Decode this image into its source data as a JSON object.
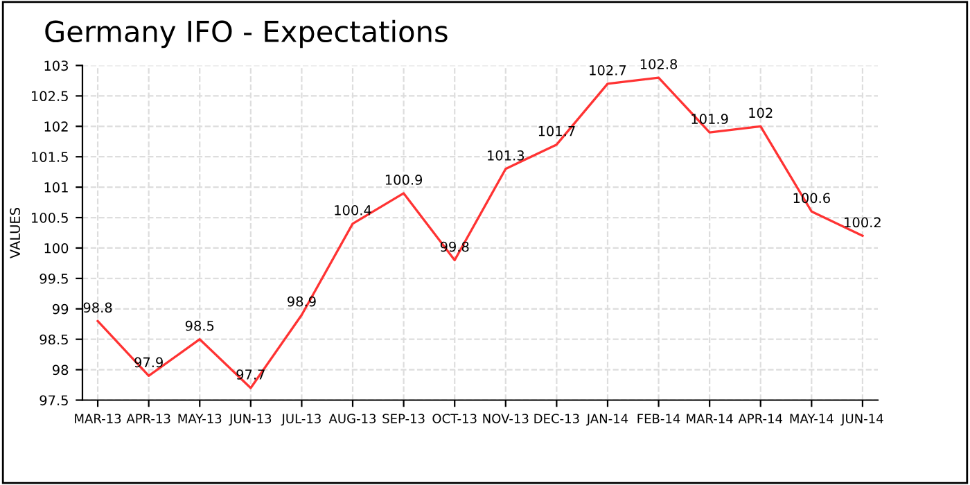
{
  "chart_data": {
    "type": "line",
    "title": "Germany IFO - Expectations",
    "ylabel": "VALUES",
    "categories": [
      "MAR-13",
      "APR-13",
      "MAY-13",
      "JUN-13",
      "JUL-13",
      "AUG-13",
      "SEP-13",
      "OCT-13",
      "NOV-13",
      "DEC-13",
      "JAN-14",
      "FEB-14",
      "MAR-14",
      "APR-14",
      "MAY-14",
      "JUN-14"
    ],
    "series": [
      {
        "color": "#ff3333",
        "values": [
          98.8,
          97.9,
          98.5,
          97.7,
          98.9,
          100.4,
          100.9,
          99.8,
          101.3,
          101.7,
          102.7,
          102.8,
          101.9,
          102,
          100.6,
          100.2
        ]
      }
    ],
    "ylim": [
      97.5,
      103
    ],
    "yticks": [
      97.5,
      98,
      98.5,
      99,
      99.5,
      100,
      100.5,
      101,
      101.5,
      102,
      102.5,
      103
    ],
    "grid": true,
    "data_labels": true,
    "marker": "none",
    "line_style": "solid"
  }
}
